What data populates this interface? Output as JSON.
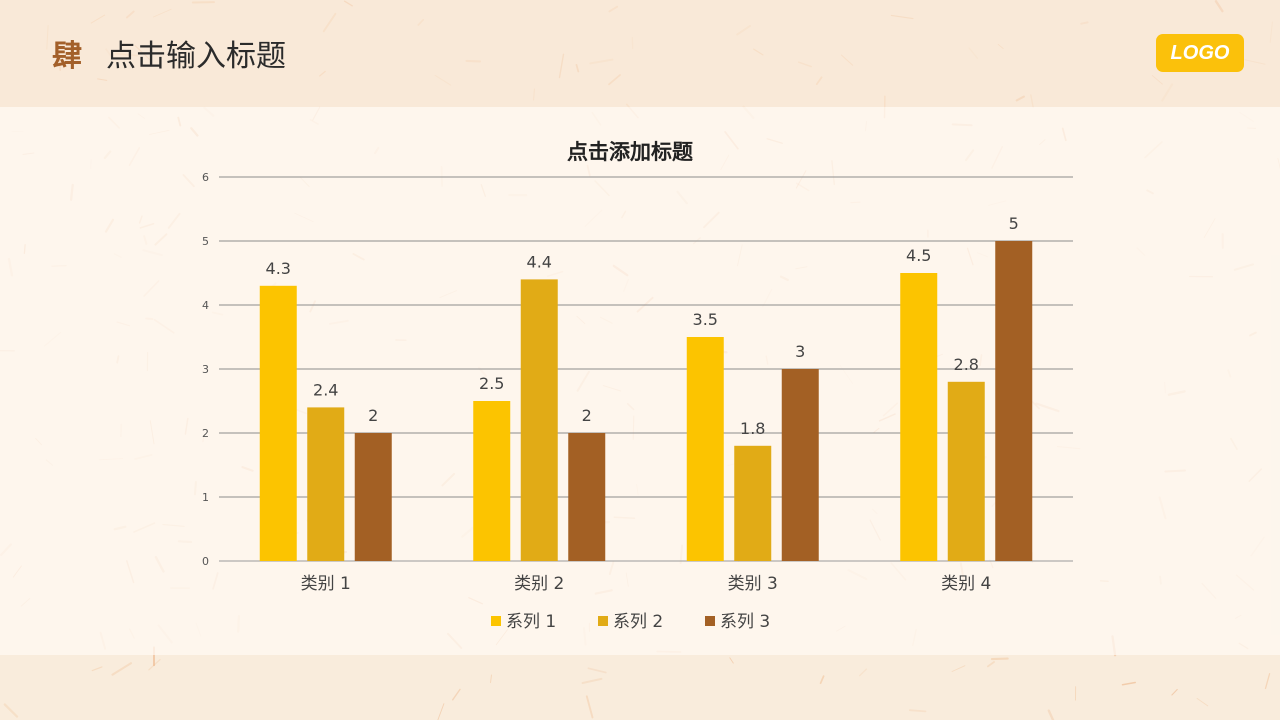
{
  "header": {
    "section_number": "肆",
    "title": "点击输入标题",
    "logo": "LOGO"
  },
  "colors": {
    "accent": "#fbc10b",
    "brand_brown": "#a3602a",
    "series": [
      "#fcc400",
      "#e1ab16",
      "#a36024"
    ]
  },
  "chart_data": {
    "type": "bar",
    "title": "点击添加标题",
    "categories": [
      "类别 1",
      "类别 2",
      "类别 3",
      "类别 4"
    ],
    "series": [
      {
        "name": "系列 1",
        "values": [
          4.3,
          2.5,
          3.5,
          4.5
        ]
      },
      {
        "name": "系列 2",
        "values": [
          2.4,
          4.4,
          1.8,
          2.8
        ]
      },
      {
        "name": "系列 3",
        "values": [
          2,
          2,
          3,
          5
        ]
      }
    ],
    "ylim": [
      0,
      6
    ],
    "yticks": [
      0,
      1,
      2,
      3,
      4,
      5,
      6
    ],
    "xlabel": "",
    "ylabel": "",
    "grid": true,
    "legend": "bottom"
  }
}
